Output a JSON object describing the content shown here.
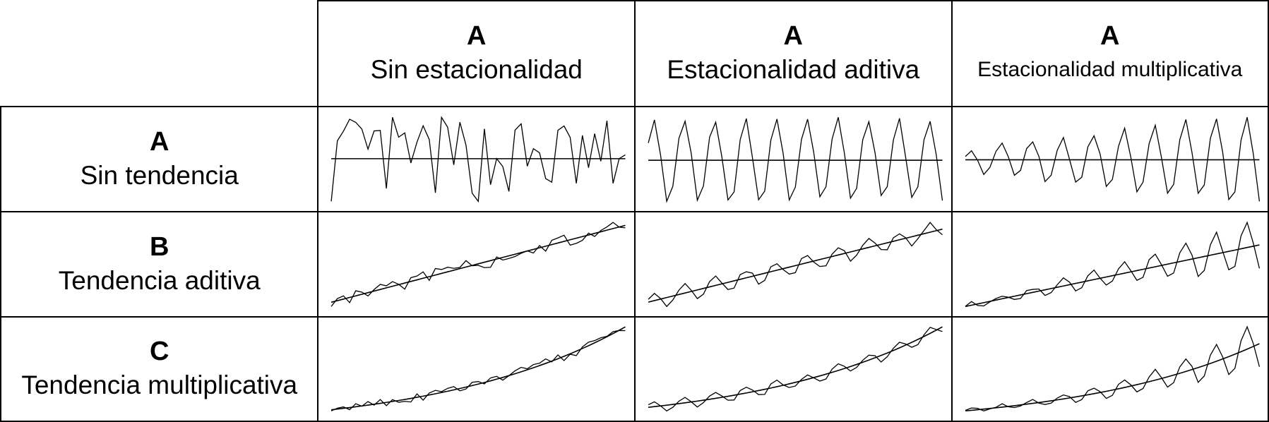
{
  "columns": [
    {
      "letter": "A",
      "label": "Sin estacionalidad"
    },
    {
      "letter": "A",
      "label": "Estacionalidad aditiva"
    },
    {
      "letter": "A",
      "label": "Estacionalidad multiplicativa"
    }
  ],
  "rows": [
    {
      "letter": "A",
      "label": "Sin tendencia"
    },
    {
      "letter": "B",
      "label": "Tendencia aditiva"
    },
    {
      "letter": "C",
      "label": "Tendencia multiplicativa"
    }
  ],
  "chart_data": [
    {
      "type": "line",
      "trend": "none",
      "seasonality": "none"
    },
    {
      "type": "line",
      "trend": "none",
      "seasonality": "additive"
    },
    {
      "type": "line",
      "trend": "none",
      "seasonality": "multiplicative"
    },
    {
      "type": "line",
      "trend": "additive",
      "seasonality": "none"
    },
    {
      "type": "line",
      "trend": "additive",
      "seasonality": "additive"
    },
    {
      "type": "line",
      "trend": "additive",
      "seasonality": "multiplicative"
    },
    {
      "type": "line",
      "trend": "multiplicative",
      "seasonality": "none"
    },
    {
      "type": "line",
      "trend": "multiplicative",
      "seasonality": "additive"
    },
    {
      "type": "line",
      "trend": "multiplicative",
      "seasonality": "multiplicative"
    }
  ]
}
